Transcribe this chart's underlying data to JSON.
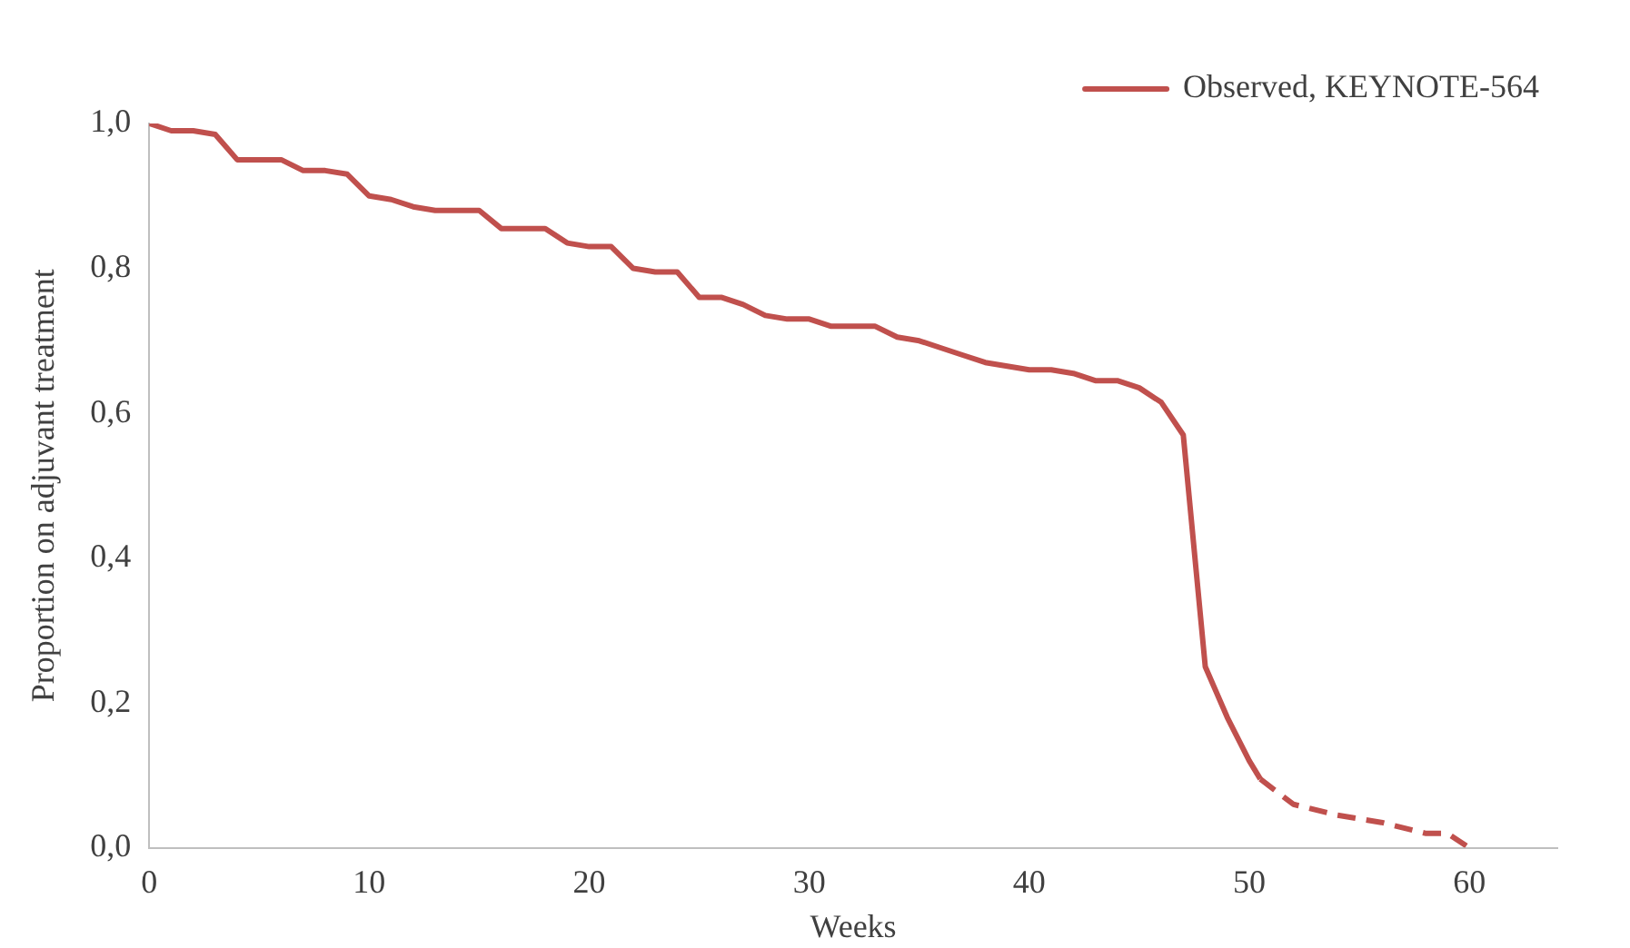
{
  "chart_data": {
    "type": "line",
    "xlabel": "Weeks",
    "ylabel": "Proportion on adjuvant treatment",
    "xlim": [
      0,
      64
    ],
    "xticks": [
      0,
      10,
      20,
      30,
      40,
      50,
      60
    ],
    "ylim": [
      0,
      1
    ],
    "yticks": [
      {
        "value": 0,
        "label": "0,0"
      },
      {
        "value": 0.2,
        "label": "0,2"
      },
      {
        "value": 0.4,
        "label": "0,4"
      },
      {
        "value": 0.6,
        "label": "0,6"
      },
      {
        "value": 0.8,
        "label": "0,8"
      },
      {
        "value": 1,
        "label": "1,0"
      }
    ],
    "grid": false,
    "legend": "top right",
    "marker": "none",
    "series": [
      {
        "name": "Observed, KEYNOTE-564",
        "color": "#c0504d",
        "line_style": "solid",
        "x": [
          0,
          1,
          2,
          3,
          4,
          5,
          6,
          7,
          8,
          9,
          10,
          11,
          12,
          13,
          14,
          15,
          16,
          17,
          18,
          19,
          20,
          21,
          22,
          23,
          24,
          25,
          26,
          27,
          28,
          29,
          30,
          31,
          32,
          33,
          34,
          35,
          36,
          37,
          38,
          39,
          40,
          41,
          42,
          43,
          44,
          45,
          46,
          47,
          48,
          49,
          50,
          50.5
        ],
        "values": [
          1.0,
          0.99,
          0.99,
          0.985,
          0.95,
          0.95,
          0.95,
          0.935,
          0.935,
          0.93,
          0.9,
          0.895,
          0.885,
          0.88,
          0.88,
          0.88,
          0.855,
          0.855,
          0.855,
          0.835,
          0.83,
          0.83,
          0.8,
          0.795,
          0.795,
          0.76,
          0.76,
          0.75,
          0.735,
          0.73,
          0.73,
          0.72,
          0.72,
          0.72,
          0.705,
          0.7,
          0.69,
          0.68,
          0.67,
          0.665,
          0.66,
          0.66,
          0.655,
          0.645,
          0.645,
          0.635,
          0.615,
          0.57,
          0.25,
          0.18,
          0.12,
          0.095
        ]
      },
      {
        "color": "#c0504d",
        "line_style": "dashed",
        "x": [
          50.5,
          52,
          54,
          56,
          58,
          59,
          60
        ],
        "values": [
          0.095,
          0.06,
          0.045,
          0.035,
          0.02,
          0.02,
          0.0
        ]
      }
    ]
  }
}
